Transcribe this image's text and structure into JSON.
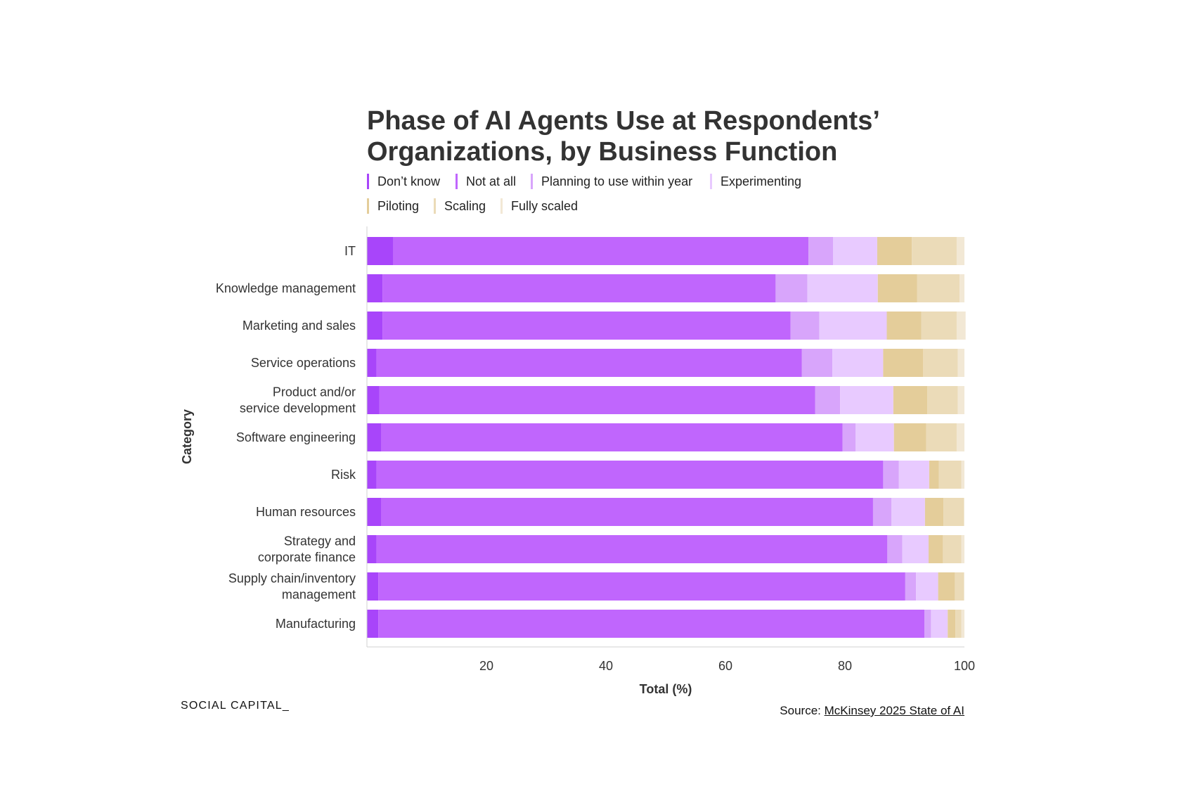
{
  "chart_data": {
    "type": "bar",
    "orientation": "horizontal",
    "stacked": true,
    "title": "Phase of AI Agents Use at Respondents’ Organizations, by Business Function",
    "xlabel": "Total (%)",
    "ylabel": "Category",
    "xlim": [
      0,
      100
    ],
    "xticks": [
      "20",
      "40",
      "60",
      "80",
      "100"
    ],
    "grid": false,
    "legend_position": "top",
    "categories": [
      "IT",
      "Knowledge management",
      "Marketing and sales",
      "Service operations",
      "Product and/or\nservice development",
      "Software engineering",
      "Risk",
      "Human resources",
      "Strategy and\ncorporate finance",
      "Supply chain/inventory\nmanagement",
      "Manufacturing"
    ],
    "series": [
      {
        "name": "Don’t know",
        "color": "#a845fa",
        "values": [
          4.4,
          2.6,
          2.6,
          1.6,
          2.1,
          2.4,
          1.6,
          2.4,
          1.6,
          1.9,
          1.9
        ]
      },
      {
        "name": "Not at all",
        "color": "#c066fd",
        "values": [
          69.5,
          65.8,
          68.3,
          71.2,
          72.9,
          77.2,
          84.8,
          82.3,
          85.5,
          88.2,
          91.4
        ]
      },
      {
        "name": "Planning to use within year",
        "color": "#d8a5fb",
        "values": [
          4.1,
          5.3,
          4.8,
          5.1,
          4.2,
          2.2,
          2.6,
          3.1,
          2.5,
          1.8,
          1.1
        ]
      },
      {
        "name": "Experimenting",
        "color": "#e8caff",
        "values": [
          7.4,
          11.8,
          11.3,
          8.5,
          8.9,
          6.4,
          5.1,
          5.6,
          4.4,
          3.7,
          2.8
        ]
      },
      {
        "name": "Piloting",
        "color": "#e4cd9a",
        "values": [
          5.8,
          6.6,
          5.8,
          6.7,
          5.7,
          5.4,
          1.6,
          3.1,
          2.4,
          2.8,
          1.3
        ]
      },
      {
        "name": "Scaling",
        "color": "#ebdbb8",
        "values": [
          7.5,
          7.1,
          5.9,
          5.8,
          5.1,
          5.1,
          3.8,
          3.4,
          3.1,
          1.5,
          1.0
        ]
      },
      {
        "name": "Fully scaled",
        "color": "#f2e8d5",
        "values": [
          1.3,
          0.8,
          1.5,
          1.1,
          1.1,
          1.3,
          0.5,
          0.1,
          0.5,
          0.1,
          0.5
        ]
      }
    ]
  },
  "footer": {
    "brand": "SOCIAL CAPITAL_",
    "source_prefix": "Source: ",
    "source_link": "McKinsey 2025 State of AI"
  }
}
